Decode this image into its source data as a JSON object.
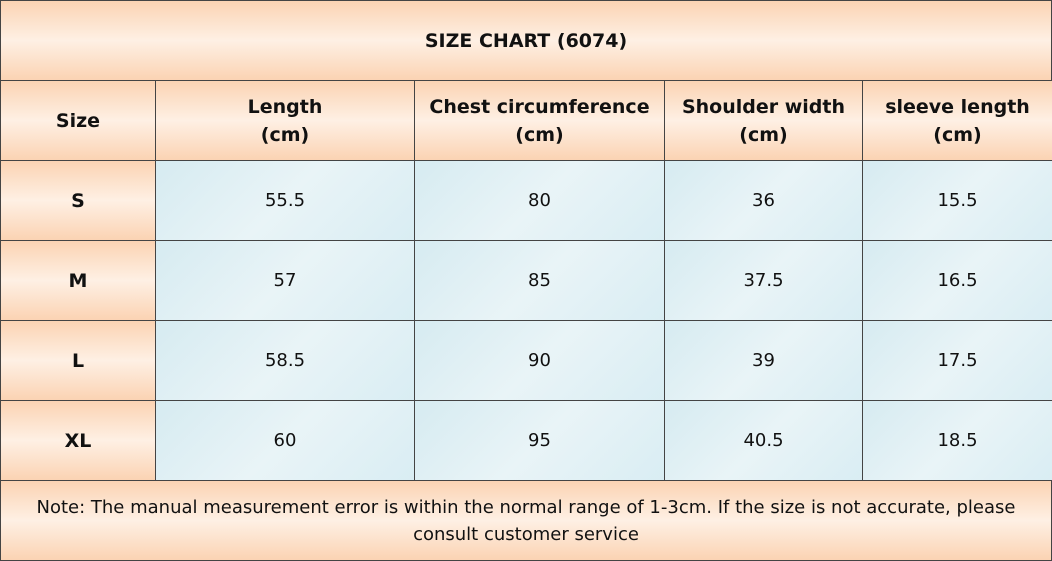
{
  "title": "SIZE CHART  (6074)",
  "table": {
    "header": [
      {
        "name": "Size"
      },
      {
        "name": "Length",
        "unit": "(cm)"
      },
      {
        "name": "Chest circumference",
        "unit": "(cm)"
      },
      {
        "name": "Shoulder width",
        "unit": "(cm)"
      },
      {
        "name": "sleeve length",
        "unit": "(cm)"
      }
    ],
    "rows": [
      [
        "S",
        "55.5",
        "80",
        "36",
        "15.5"
      ],
      [
        "M",
        "57",
        "85",
        "37.5",
        "16.5"
      ],
      [
        "L",
        "58.5",
        "90",
        "39",
        "17.5"
      ],
      [
        "XL",
        "60",
        "95",
        "40.5",
        "18.5"
      ]
    ]
  },
  "note": "Note: The manual measurement error is within the normal range of 1-3cm. If the size is not accurate, please consult customer service"
}
